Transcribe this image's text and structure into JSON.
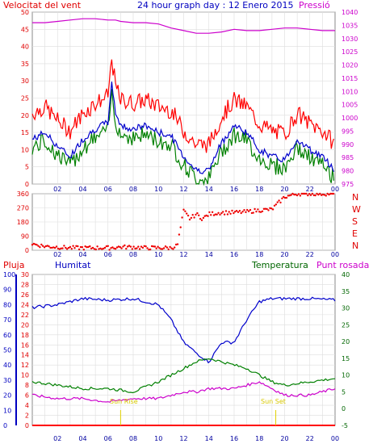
{
  "header": {
    "title": "24 hour graph day : 12 Enero 2015",
    "left_label": "Velocitat del vent",
    "right_label": "Pressió"
  },
  "wind_panel": {
    "y_ticks": [
      "0",
      "5",
      "10",
      "15",
      "20",
      "25",
      "30",
      "35",
      "40",
      "45",
      "50"
    ],
    "pressure_ticks": [
      "975",
      "980",
      "985",
      "990",
      "995",
      "1000",
      "1005",
      "1010",
      "1015",
      "1020",
      "1025",
      "1030",
      "1035",
      "1040"
    ],
    "x_ticks": [
      "02",
      "04",
      "06",
      "08",
      "10",
      "12",
      "14",
      "16",
      "18",
      "20",
      "22",
      "00"
    ]
  },
  "direction_panel": {
    "y_ticks": [
      "0",
      "90",
      "180",
      "270",
      "360"
    ],
    "compass": [
      "N",
      "W",
      "S",
      "E",
      "N"
    ]
  },
  "lower_panel": {
    "labels": {
      "rain": "Pluja",
      "humidity": "Humitat",
      "temperature": "Temperatura",
      "dewpoint": "Punt rosada"
    },
    "humidity_ticks": [
      "0",
      "10",
      "20",
      "30",
      "40",
      "50",
      "60",
      "70",
      "80",
      "90",
      "100"
    ],
    "rain_ticks": [
      "0",
      "2",
      "4",
      "6",
      "8",
      "10",
      "12",
      "14",
      "16",
      "18",
      "20",
      "22",
      "24",
      "26",
      "28",
      "30"
    ],
    "temp_ticks": [
      "-5",
      "0",
      "5",
      "10",
      "15",
      "20",
      "25",
      "30",
      "35",
      "40"
    ],
    "sun_rise": "Sun Rise",
    "sun_set": "Sun Set"
  },
  "colors": {
    "gust": "#ff0000",
    "avg": "#0000cc",
    "low": "#008000",
    "pressure": "#cc00cc",
    "direction": "#ee0000",
    "grid": "#dddddd"
  },
  "chart_data": [
    {
      "type": "line",
      "ylabel": "Velocitat del vent",
      "xlabel": "",
      "ylim": [
        0,
        50
      ],
      "y2lim": [
        975,
        1040
      ],
      "x_hours": [
        0,
        1,
        2,
        3,
        4,
        5,
        6,
        6.3,
        6.6,
        7,
        8,
        9,
        10,
        11,
        12,
        13,
        14,
        15,
        16,
        17,
        18,
        19,
        20,
        21,
        22,
        23,
        24
      ],
      "series": [
        {
          "name": "Velocitat del vent",
          "values": [
            14,
            16,
            12,
            9,
            14,
            17,
            19,
            30,
            22,
            18,
            17,
            18,
            16,
            15,
            9,
            5,
            5,
            13,
            18,
            16,
            11,
            9,
            8,
            14,
            11,
            9,
            5
          ]
        },
        {
          "name": "Pressió",
          "values": [
            1036,
            1036,
            1036.5,
            1037,
            1037.5,
            1037.5,
            1037,
            1037,
            1037,
            1036.5,
            1036,
            1036,
            1035.5,
            1034,
            1033,
            1032,
            1032,
            1032.5,
            1033.5,
            1033,
            1033,
            1033.5,
            1034,
            1034,
            1033.5,
            1033,
            1033
          ]
        }
      ]
    },
    {
      "type": "scatter",
      "ylim": [
        0,
        360
      ],
      "x_hours": [
        0,
        1,
        2,
        3,
        4,
        5,
        6,
        7,
        8,
        9,
        10,
        11,
        11.5,
        12,
        12.5,
        13,
        13.5,
        14,
        15,
        16,
        17,
        18,
        19,
        20,
        21,
        22,
        23,
        24
      ],
      "series": [
        {
          "name": "direction",
          "values": [
            40,
            25,
            20,
            15,
            15,
            15,
            15,
            20,
            20,
            15,
            15,
            15,
            30,
            250,
            200,
            230,
            200,
            230,
            240,
            240,
            245,
            255,
            260,
            340,
            360,
            360,
            360,
            360
          ]
        }
      ]
    },
    {
      "type": "line",
      "ylim": [
        0,
        100
      ],
      "y2lim": [
        -5,
        40
      ],
      "x_hours": [
        0,
        2,
        4,
        6,
        8,
        10,
        11,
        12,
        13,
        14,
        15,
        16,
        17,
        18,
        19,
        20,
        22,
        24
      ],
      "series": [
        {
          "name": "Humitat",
          "values": [
            78,
            80,
            84,
            83,
            84,
            80,
            70,
            55,
            48,
            42,
            55,
            55,
            70,
            82,
            84,
            84,
            84,
            83
          ]
        },
        {
          "name": "Temperatura",
          "values": [
            8,
            7,
            6,
            6,
            5,
            8,
            10,
            12,
            14,
            15,
            14,
            13,
            12,
            10,
            8,
            7,
            8,
            9
          ]
        },
        {
          "name": "Punt rosada",
          "values": [
            4,
            3,
            3,
            2,
            3,
            3,
            4,
            5,
            5,
            6,
            6,
            6,
            7,
            8,
            6,
            4,
            4,
            6
          ]
        },
        {
          "name": "Pluja",
          "values": [
            0,
            0,
            0,
            0,
            0,
            0,
            0,
            0,
            0,
            0,
            0,
            0,
            0,
            0,
            0,
            0,
            0,
            0
          ]
        }
      ]
    }
  ]
}
